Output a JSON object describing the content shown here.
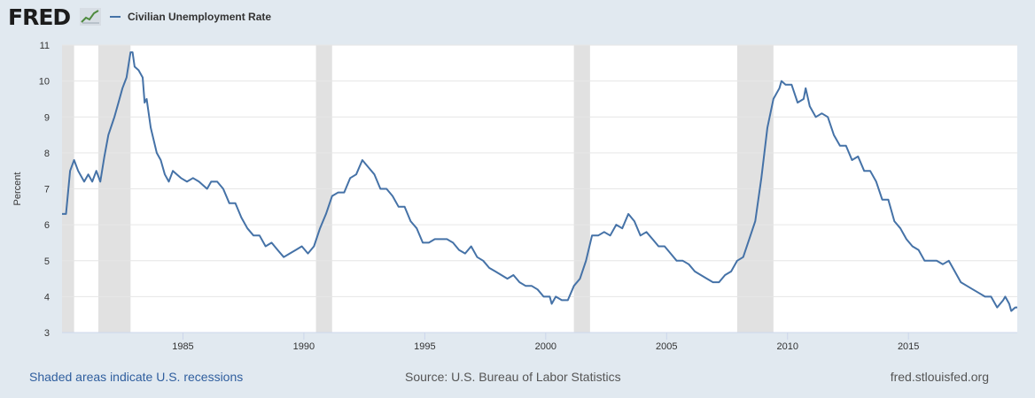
{
  "header": {
    "logo_text": "FRED",
    "logo_graph_icon": "trend-line-icon"
  },
  "footer": {
    "recession_note": "Shaded areas indicate U.S. recessions",
    "source": "Source: U.S. Bureau of Labor Statistics",
    "site": "fred.stlouisfed.org"
  },
  "colors": {
    "series": "#4572a7",
    "recession": "#e1e1e1",
    "background": "#e1e9f0",
    "plot_background": "#ffffff",
    "grid": "#e6e6e6"
  },
  "chart_data": {
    "type": "line",
    "title": "",
    "xlabel": "",
    "ylabel": "Percent",
    "xlim": [
      "1980-01",
      "2019-07"
    ],
    "ylim": [
      3,
      11
    ],
    "y_ticks": [
      3,
      4,
      5,
      6,
      7,
      8,
      9,
      10,
      11
    ],
    "x_ticks": [
      "1985",
      "1990",
      "1995",
      "2000",
      "2005",
      "2010",
      "2015"
    ],
    "grid": true,
    "legend_position": "top-left",
    "recessions": [
      {
        "start": "1980-01",
        "end": "1980-07"
      },
      {
        "start": "1981-07",
        "end": "1982-11"
      },
      {
        "start": "1990-07",
        "end": "1991-03"
      },
      {
        "start": "2001-03",
        "end": "2001-11"
      },
      {
        "start": "2007-12",
        "end": "2009-06"
      }
    ],
    "series": [
      {
        "name": "Civilian Unemployment Rate",
        "points": [
          [
            "1980-01",
            6.3
          ],
          [
            "1980-03",
            6.3
          ],
          [
            "1980-04",
            6.9
          ],
          [
            "1980-05",
            7.5
          ],
          [
            "1980-07",
            7.8
          ],
          [
            "1980-09",
            7.5
          ],
          [
            "1980-12",
            7.2
          ],
          [
            "1981-02",
            7.4
          ],
          [
            "1981-04",
            7.2
          ],
          [
            "1981-06",
            7.5
          ],
          [
            "1981-08",
            7.2
          ],
          [
            "1981-10",
            7.9
          ],
          [
            "1981-12",
            8.5
          ],
          [
            "1982-03",
            9.0
          ],
          [
            "1982-05",
            9.4
          ],
          [
            "1982-07",
            9.8
          ],
          [
            "1982-09",
            10.1
          ],
          [
            "1982-11",
            10.8
          ],
          [
            "1982-12",
            10.8
          ],
          [
            "1983-01",
            10.4
          ],
          [
            "1983-03",
            10.3
          ],
          [
            "1983-05",
            10.1
          ],
          [
            "1983-06",
            9.4
          ],
          [
            "1983-07",
            9.5
          ],
          [
            "1983-09",
            8.7
          ],
          [
            "1983-12",
            8.0
          ],
          [
            "1984-02",
            7.8
          ],
          [
            "1984-04",
            7.4
          ],
          [
            "1984-06",
            7.2
          ],
          [
            "1984-08",
            7.5
          ],
          [
            "1984-10",
            7.4
          ],
          [
            "1984-12",
            7.3
          ],
          [
            "1985-03",
            7.2
          ],
          [
            "1985-06",
            7.3
          ],
          [
            "1985-09",
            7.2
          ],
          [
            "1986-01",
            7.0
          ],
          [
            "1986-03",
            7.2
          ],
          [
            "1986-06",
            7.2
          ],
          [
            "1986-09",
            7.0
          ],
          [
            "1986-12",
            6.6
          ],
          [
            "1987-03",
            6.6
          ],
          [
            "1987-06",
            6.2
          ],
          [
            "1987-09",
            5.9
          ],
          [
            "1987-12",
            5.7
          ],
          [
            "1988-03",
            5.7
          ],
          [
            "1988-06",
            5.4
          ],
          [
            "1988-09",
            5.5
          ],
          [
            "1988-12",
            5.3
          ],
          [
            "1989-03",
            5.1
          ],
          [
            "1989-06",
            5.2
          ],
          [
            "1989-09",
            5.3
          ],
          [
            "1989-12",
            5.4
          ],
          [
            "1990-03",
            5.2
          ],
          [
            "1990-06",
            5.4
          ],
          [
            "1990-09",
            5.9
          ],
          [
            "1990-12",
            6.3
          ],
          [
            "1991-03",
            6.8
          ],
          [
            "1991-06",
            6.9
          ],
          [
            "1991-09",
            6.9
          ],
          [
            "1991-12",
            7.3
          ],
          [
            "1992-03",
            7.4
          ],
          [
            "1992-06",
            7.8
          ],
          [
            "1992-09",
            7.6
          ],
          [
            "1992-12",
            7.4
          ],
          [
            "1993-03",
            7.0
          ],
          [
            "1993-06",
            7.0
          ],
          [
            "1993-09",
            6.8
          ],
          [
            "1993-12",
            6.5
          ],
          [
            "1994-03",
            6.5
          ],
          [
            "1994-06",
            6.1
          ],
          [
            "1994-09",
            5.9
          ],
          [
            "1994-12",
            5.5
          ],
          [
            "1995-03",
            5.5
          ],
          [
            "1995-06",
            5.6
          ],
          [
            "1995-09",
            5.6
          ],
          [
            "1995-12",
            5.6
          ],
          [
            "1996-03",
            5.5
          ],
          [
            "1996-06",
            5.3
          ],
          [
            "1996-09",
            5.2
          ],
          [
            "1996-12",
            5.4
          ],
          [
            "1997-03",
            5.1
          ],
          [
            "1997-06",
            5.0
          ],
          [
            "1997-09",
            4.8
          ],
          [
            "1997-12",
            4.7
          ],
          [
            "1998-03",
            4.6
          ],
          [
            "1998-06",
            4.5
          ],
          [
            "1998-09",
            4.6
          ],
          [
            "1998-12",
            4.4
          ],
          [
            "1999-03",
            4.3
          ],
          [
            "1999-06",
            4.3
          ],
          [
            "1999-09",
            4.2
          ],
          [
            "1999-12",
            4.0
          ],
          [
            "2000-03",
            4.0
          ],
          [
            "2000-04",
            3.8
          ],
          [
            "2000-06",
            4.0
          ],
          [
            "2000-09",
            3.9
          ],
          [
            "2000-12",
            3.9
          ],
          [
            "2001-03",
            4.3
          ],
          [
            "2001-06",
            4.5
          ],
          [
            "2001-09",
            5.0
          ],
          [
            "2001-12",
            5.7
          ],
          [
            "2002-03",
            5.7
          ],
          [
            "2002-06",
            5.8
          ],
          [
            "2002-09",
            5.7
          ],
          [
            "2002-12",
            6.0
          ],
          [
            "2003-03",
            5.9
          ],
          [
            "2003-06",
            6.3
          ],
          [
            "2003-09",
            6.1
          ],
          [
            "2003-12",
            5.7
          ],
          [
            "2004-03",
            5.8
          ],
          [
            "2004-06",
            5.6
          ],
          [
            "2004-09",
            5.4
          ],
          [
            "2004-12",
            5.4
          ],
          [
            "2005-03",
            5.2
          ],
          [
            "2005-06",
            5.0
          ],
          [
            "2005-09",
            5.0
          ],
          [
            "2005-12",
            4.9
          ],
          [
            "2006-03",
            4.7
          ],
          [
            "2006-06",
            4.6
          ],
          [
            "2006-09",
            4.5
          ],
          [
            "2006-12",
            4.4
          ],
          [
            "2007-03",
            4.4
          ],
          [
            "2007-06",
            4.6
          ],
          [
            "2007-09",
            4.7
          ],
          [
            "2007-12",
            5.0
          ],
          [
            "2008-03",
            5.1
          ],
          [
            "2008-06",
            5.6
          ],
          [
            "2008-09",
            6.1
          ],
          [
            "2008-12",
            7.3
          ],
          [
            "2009-03",
            8.7
          ],
          [
            "2009-06",
            9.5
          ],
          [
            "2009-09",
            9.8
          ],
          [
            "2009-10",
            10.0
          ],
          [
            "2009-12",
            9.9
          ],
          [
            "2010-03",
            9.9
          ],
          [
            "2010-06",
            9.4
          ],
          [
            "2010-09",
            9.5
          ],
          [
            "2010-10",
            9.8
          ],
          [
            "2010-12",
            9.3
          ],
          [
            "2011-03",
            9.0
          ],
          [
            "2011-06",
            9.1
          ],
          [
            "2011-09",
            9.0
          ],
          [
            "2011-12",
            8.5
          ],
          [
            "2012-03",
            8.2
          ],
          [
            "2012-06",
            8.2
          ],
          [
            "2012-09",
            7.8
          ],
          [
            "2012-12",
            7.9
          ],
          [
            "2013-03",
            7.5
          ],
          [
            "2013-06",
            7.5
          ],
          [
            "2013-09",
            7.2
          ],
          [
            "2013-12",
            6.7
          ],
          [
            "2014-03",
            6.7
          ],
          [
            "2014-06",
            6.1
          ],
          [
            "2014-09",
            5.9
          ],
          [
            "2014-12",
            5.6
          ],
          [
            "2015-03",
            5.4
          ],
          [
            "2015-06",
            5.3
          ],
          [
            "2015-09",
            5.0
          ],
          [
            "2015-12",
            5.0
          ],
          [
            "2016-03",
            5.0
          ],
          [
            "2016-06",
            4.9
          ],
          [
            "2016-09",
            5.0
          ],
          [
            "2016-12",
            4.7
          ],
          [
            "2017-03",
            4.4
          ],
          [
            "2017-06",
            4.3
          ],
          [
            "2017-09",
            4.2
          ],
          [
            "2017-12",
            4.1
          ],
          [
            "2018-03",
            4.0
          ],
          [
            "2018-06",
            4.0
          ],
          [
            "2018-09",
            3.7
          ],
          [
            "2018-12",
            3.9
          ],
          [
            "2019-01",
            4.0
          ],
          [
            "2019-03",
            3.8
          ],
          [
            "2019-04",
            3.6
          ],
          [
            "2019-06",
            3.7
          ],
          [
            "2019-07",
            3.7
          ]
        ]
      }
    ]
  }
}
